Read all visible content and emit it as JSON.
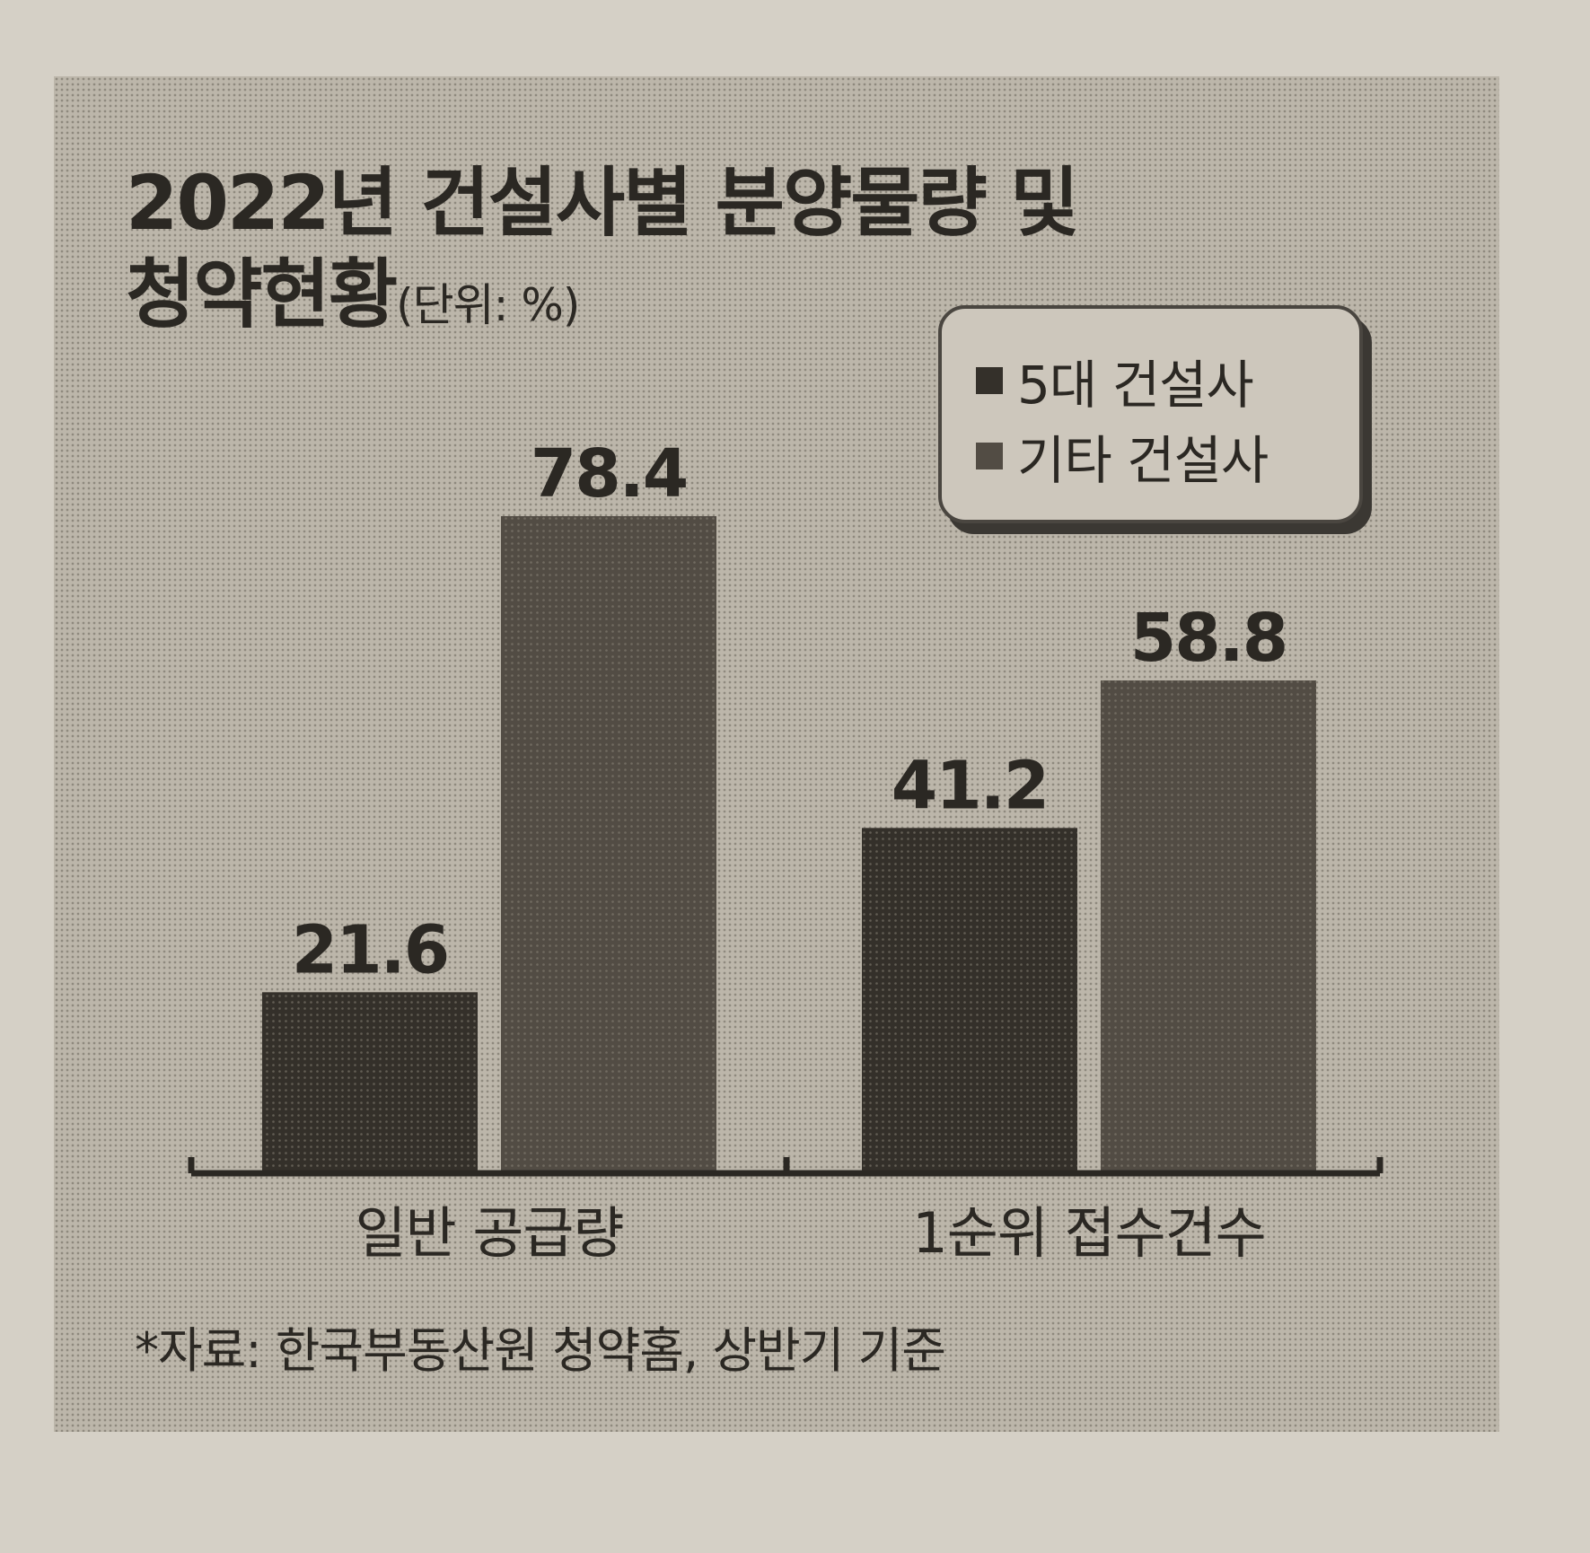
{
  "chart_data": {
    "type": "bar",
    "title": "2022년 건설사별 분양물량 및 청약현황",
    "unit": "(단위: %)",
    "categories": [
      "일반 공급량",
      "1순위 접수건수"
    ],
    "series": [
      {
        "name": "5대 건설사",
        "values": [
          21.6,
          41.2
        ],
        "color": "#34302a"
      },
      {
        "name": "기타 건설사",
        "values": [
          78.4,
          58.8
        ],
        "color": "#524c44"
      }
    ],
    "ylim": [
      0,
      80
    ],
    "grid": false,
    "legend_position": "top-right"
  },
  "title_line1": "2022년 건설사별 분양물량 및",
  "title_line2": "청약현황",
  "source": "*자료: 한국부동산원 청약홈, 상반기 기준"
}
